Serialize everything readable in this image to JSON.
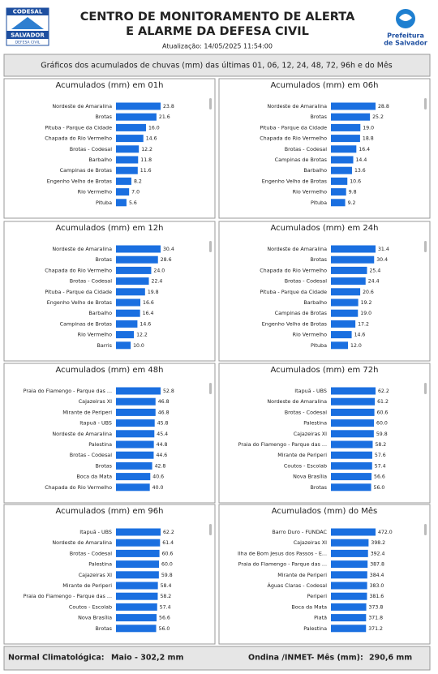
{
  "header": {
    "logo": [
      "CODESAL",
      "SALVADOR",
      "DEFESA CIVIL"
    ],
    "title": [
      "CENTRO DE MONITORAMENTO DE ALERTA",
      "E ALARME DA DEFESA CIVIL"
    ],
    "updated": "Atualização: 14/05/2025 11:54:00",
    "city": [
      "Prefeitura",
      "de Salvador"
    ],
    "subtitle": "Gráficos dos acumulados de chuvas (mm) das últimas 01, 06, 12, 24, 48, 72, 96h e do Mês"
  },
  "chart_data": [
    {
      "type": "bar",
      "title": "Acumulados (mm) em 01h",
      "color": "#1a6fe0",
      "categories": [
        "Nordeste de Amaralina",
        "Brotas",
        "Pituba - Parque da Cidade",
        "Chapada do Rio Vermelho",
        "Brotas - Codesal",
        "Barbalho",
        "Campinas de Brotas",
        "Engenho Velho de Brotas",
        "Rio Vermelho",
        "Pituba"
      ],
      "values": [
        23.8,
        21.6,
        16.0,
        14.6,
        12.2,
        11.8,
        11.6,
        8.2,
        7.0,
        5.6
      ],
      "value_labels": [
        "23.8",
        "21.6",
        "16.0",
        "14.6",
        "12.2",
        "11.8",
        "11.6",
        "8.2",
        "7.0",
        "5.6"
      ]
    },
    {
      "type": "bar",
      "title": "Acumulados (mm) em 06h",
      "color": "#1a6fe0",
      "categories": [
        "Nordeste de Amaralina",
        "Brotas",
        "Pituba - Parque da Cidade",
        "Chapada do Rio Vermelho",
        "Brotas - Codesal",
        "Campinas de Brotas",
        "Barbalho",
        "Engenho Velho de Brotas",
        "Rio Vermelho",
        "Pituba"
      ],
      "values": [
        28.8,
        25.2,
        19.0,
        18.8,
        16.4,
        14.4,
        13.6,
        10.6,
        9.8,
        9.2
      ],
      "value_labels": [
        "28.8",
        "25.2",
        "19.0",
        "18.8",
        "16.4",
        "14.4",
        "13.6",
        "10.6",
        "9.8",
        "9.2"
      ]
    },
    {
      "type": "bar",
      "title": "Acumulados (mm) em 12h",
      "color": "#1a6fe0",
      "categories": [
        "Nordeste de Amaralina",
        "Brotas",
        "Chapada do Rio Vermelho",
        "Brotas - Codesal",
        "Pituba - Parque da Cidade",
        "Engenho Velho de Brotas",
        "Barbalho",
        "Campinas de Brotas",
        "Rio Vermelho",
        "Barris"
      ],
      "values": [
        30.4,
        28.6,
        24.0,
        22.4,
        19.8,
        16.6,
        16.4,
        14.6,
        12.2,
        10.0
      ],
      "value_labels": [
        "30.4",
        "28.6",
        "24.0",
        "22.4",
        "19.8",
        "16.6",
        "16.4",
        "14.6",
        "12.2",
        "10.0"
      ]
    },
    {
      "type": "bar",
      "title": "Acumulados (mm) em 24h",
      "color": "#1a6fe0",
      "categories": [
        "Nordeste de Amaralina",
        "Brotas",
        "Chapada do Rio Vermelho",
        "Brotas - Codesal",
        "Pituba - Parque da Cidade",
        "Barbalho",
        "Campinas de Brotas",
        "Engenho Velho de Brotas",
        "Rio Vermelho",
        "Pituba"
      ],
      "values": [
        31.4,
        30.4,
        25.4,
        24.4,
        20.6,
        19.2,
        19.0,
        17.2,
        14.6,
        12.0
      ],
      "value_labels": [
        "31.4",
        "30.4",
        "25.4",
        "24.4",
        "20.6",
        "19.2",
        "19.0",
        "17.2",
        "14.6",
        "12.0"
      ]
    },
    {
      "type": "bar",
      "title": "Acumulados (mm) em 48h",
      "color": "#1a6fe0",
      "categories": [
        "Praia do Flamengo - Parque das ...",
        "Cajazeiras XI",
        "Mirante de Periperi",
        "Itapuã - UBS",
        "Nordeste de Amaralina",
        "Palestina",
        "Brotas - Codesal",
        "Brotas",
        "Boca da Mata",
        "Chapada do Rio Vermelho"
      ],
      "values": [
        52.8,
        46.8,
        46.8,
        45.8,
        45.4,
        44.8,
        44.6,
        42.8,
        40.6,
        40.0
      ],
      "value_labels": [
        "52.8",
        "46.8",
        "46.8",
        "45.8",
        "45.4",
        "44.8",
        "44.6",
        "42.8",
        "40.6",
        "40.0"
      ]
    },
    {
      "type": "bar",
      "title": "Acumulados (mm) em 72h",
      "color": "#1a6fe0",
      "categories": [
        "Itapuã - UBS",
        "Nordeste de Amaralina",
        "Brotas - Codesal",
        "Palestina",
        "Cajazeiras XI",
        "Praia do Flamengo - Parque das ...",
        "Mirante de Periperi",
        "Coutos - Escolab",
        "Nova Brasília",
        "Brotas"
      ],
      "values": [
        62.2,
        61.2,
        60.6,
        60.0,
        59.8,
        58.2,
        57.6,
        57.4,
        56.6,
        56.0
      ],
      "value_labels": [
        "62.2",
        "61.2",
        "60.6",
        "60.0",
        "59.8",
        "58.2",
        "57.6",
        "57.4",
        "56.6",
        "56.0"
      ]
    },
    {
      "type": "bar",
      "title": "Acumulados (mm) em 96h",
      "color": "#1a6fe0",
      "categories": [
        "Itapuã - UBS",
        "Nordeste de Amaralina",
        "Brotas - Codesal",
        "Palestina",
        "Cajazeiras XI",
        "Mirante de Periperi",
        "Praia do Flamengo - Parque das ...",
        "Coutos - Escolab",
        "Nova Brasília",
        "Brotas"
      ],
      "values": [
        62.2,
        61.4,
        60.6,
        60.0,
        59.8,
        58.4,
        58.2,
        57.4,
        56.6,
        56.0
      ],
      "value_labels": [
        "62.2",
        "61.4",
        "60.6",
        "60.0",
        "59.8",
        "58.4",
        "58.2",
        "57.4",
        "56.6",
        "56.0"
      ]
    },
    {
      "type": "bar",
      "title": "Acumulados (mm) do Mês",
      "color": "#1a6fe0",
      "categories": [
        "Barro Duro - FUNDAC",
        "Cajazeiras XI",
        "Ilha de Bom Jesus dos Passos - E...",
        "Praia do Flamengo - Parque das ...",
        "Mirante de Periperi",
        "Águas Claras - Codesal",
        "Periperi",
        "Boca da Mata",
        "Piatã",
        "Palestina"
      ],
      "values": [
        472.0,
        398.2,
        392.4,
        387.8,
        384.4,
        383.0,
        381.6,
        373.8,
        371.8,
        371.2
      ],
      "value_labels": [
        "472.0",
        "398.2",
        "392.4",
        "387.8",
        "384.4",
        "383.0",
        "381.6",
        "373.8",
        "371.8",
        "371.2"
      ]
    }
  ],
  "footer": {
    "normal_label": "Normal Climatológica:",
    "normal_value": "Maio - 302,2 mm",
    "station_label": "Ondina /INMET- Mês (mm):",
    "station_value": "290,6 mm"
  }
}
